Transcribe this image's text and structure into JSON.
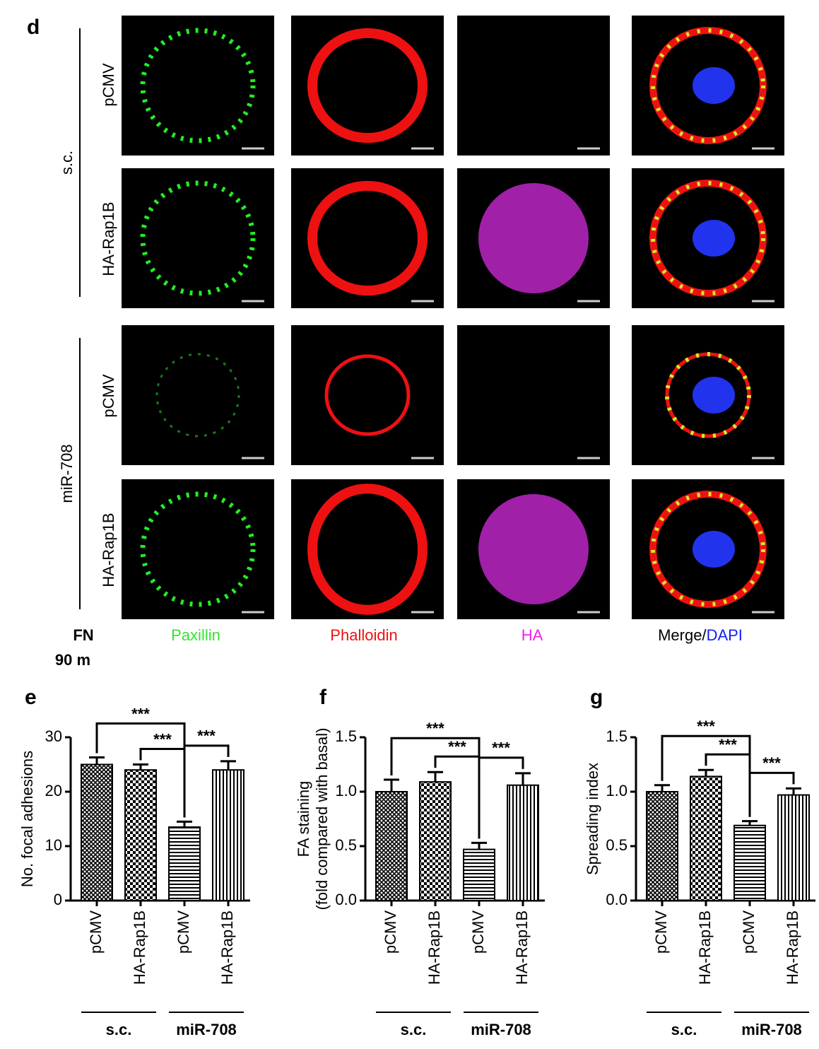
{
  "panel_d": {
    "label": "d",
    "groups": [
      "s.c.",
      "miR-708"
    ],
    "rows": [
      "pCMV",
      "HA-Rap1B",
      "pCMV",
      "HA-Rap1B"
    ],
    "columns": [
      "Paxillin",
      "Phalloidin",
      "HA"
    ],
    "merge": "Merge/",
    "dapi": "DAPI",
    "condition": [
      "FN",
      "90 m"
    ]
  },
  "chart_data": [
    {
      "type": "bar",
      "panel_label": "e",
      "ylabel": [
        "No. focal adhesions"
      ],
      "categories": [
        "pCMV",
        "HA-Rap1B",
        "pCMV",
        "HA-Rap1B"
      ],
      "values": [
        25,
        24,
        13.5,
        24
      ],
      "errors": [
        1.3,
        1.0,
        1.0,
        1.6
      ],
      "patterns": [
        "crosshatch",
        "checker",
        "horizontal",
        "vertical"
      ],
      "color": "#000000",
      "ylim": [
        0,
        30
      ],
      "yticks": [
        0,
        10,
        20,
        30
      ],
      "annotations": [
        {
          "text": "***",
          "from": 0,
          "to": 2
        },
        {
          "text": "***",
          "from": 1,
          "to": 2
        },
        {
          "text": "***",
          "from": 2,
          "to": 3
        }
      ],
      "groups": [
        {
          "label": "s.c.",
          "from": 0,
          "to": 1
        },
        {
          "label": "miR-708",
          "from": 2,
          "to": 3
        }
      ]
    },
    {
      "type": "bar",
      "panel_label": "f",
      "ylabel": [
        "FA staining",
        "(fold compared with basal)"
      ],
      "categories": [
        "pCMV",
        "HA-Rap1B",
        "pCMV",
        "HA-Rap1B"
      ],
      "values": [
        1.0,
        1.09,
        0.47,
        1.06
      ],
      "errors": [
        0.11,
        0.09,
        0.06,
        0.11
      ],
      "patterns": [
        "crosshatch",
        "checker",
        "horizontal",
        "vertical"
      ],
      "color": "#000000",
      "ylim": [
        0,
        1.5
      ],
      "yticks": [
        {
          "value": 0,
          "label": "0.0"
        },
        0.5,
        {
          "value": 1,
          "label": "1.0"
        },
        1.5
      ],
      "annotations": [
        {
          "text": "***",
          "from": 0,
          "to": 2
        },
        {
          "text": "***",
          "from": 1,
          "to": 2
        },
        {
          "text": "***",
          "from": 2,
          "to": 3
        }
      ],
      "groups": [
        {
          "label": "s.c.",
          "from": 0,
          "to": 1
        },
        {
          "label": "miR-708",
          "from": 2,
          "to": 3
        }
      ]
    },
    {
      "type": "bar",
      "panel_label": "g",
      "ylabel": [
        "Spreading index"
      ],
      "categories": [
        "pCMV",
        "HA-Rap1B",
        "pCMV",
        "HA-Rap1B"
      ],
      "values": [
        1.0,
        1.14,
        0.69,
        0.97
      ],
      "errors": [
        0.06,
        0.06,
        0.04,
        0.06
      ],
      "patterns": [
        "crosshatch",
        "checker",
        "horizontal",
        "vertical"
      ],
      "color": "#000000",
      "ylim": [
        0,
        1.5
      ],
      "yticks": [
        {
          "value": 0,
          "label": "0.0"
        },
        0.5,
        {
          "value": 1,
          "label": "1.0"
        },
        1.5
      ],
      "annotations": [
        {
          "text": "***",
          "from": 0,
          "to": 2
        },
        {
          "text": "***",
          "from": 1,
          "to": 2
        },
        {
          "text": "***",
          "from": 2,
          "to": 3
        }
      ],
      "groups": [
        {
          "label": "s.c.",
          "from": 0,
          "to": 1
        },
        {
          "label": "miR-708",
          "from": 2,
          "to": 3
        }
      ]
    }
  ]
}
